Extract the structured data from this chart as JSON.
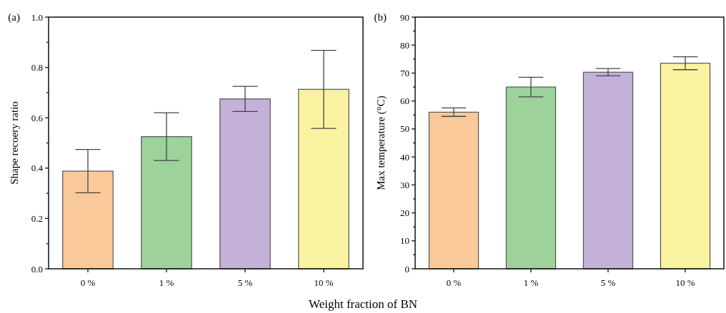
{
  "chart_data": [
    {
      "type": "bar",
      "title": "(a)",
      "xlabel": "Weight fraction of BN",
      "ylabel": "Shape recoery ratio",
      "categories": [
        "0 %",
        "1 %",
        "5 %",
        "10 %"
      ],
      "values": [
        0.388,
        0.525,
        0.675,
        0.713
      ],
      "errors": [
        0.086,
        0.095,
        0.05,
        0.155
      ],
      "colors": [
        "#f9c99a",
        "#9dd29b",
        "#c3b1d7",
        "#f9f3a1"
      ],
      "ylim": [
        0,
        1
      ],
      "yticks": [
        {
          "value": 0,
          "label": "0.0"
        },
        {
          "value": 0.1,
          "label": null
        },
        0.2,
        {
          "value": 0.3,
          "label": null
        },
        0.4,
        {
          "value": 0.5,
          "label": null
        },
        0.6,
        {
          "value": 0.7,
          "label": null
        },
        0.8,
        {
          "value": 0.9,
          "label": null
        },
        {
          "value": 1,
          "label": "1.0"
        }
      ],
      "grid": false
    },
    {
      "type": "bar",
      "title": "(b)",
      "ylabel": "Max temperature (°C)",
      "categories": [
        "0 %",
        "1 %",
        "5 %",
        "10 %"
      ],
      "values": [
        56,
        65,
        70.3,
        73.5
      ],
      "errors": [
        1.5,
        3.5,
        1.3,
        2.3
      ],
      "colors": [
        "#f9c99a",
        "#9dd29b",
        "#c3b1d7",
        "#f9f3a1"
      ],
      "ylim": [
        0,
        90
      ],
      "yticks": [
        0,
        {
          "value": 5,
          "label": null
        },
        10,
        {
          "value": 15,
          "label": null
        },
        20,
        {
          "value": 25,
          "label": null
        },
        30,
        {
          "value": 35,
          "label": null
        },
        40,
        {
          "value": 45,
          "label": null
        },
        50,
        {
          "value": 55,
          "label": null
        },
        60,
        {
          "value": 65,
          "label": null
        },
        70,
        {
          "value": 75,
          "label": null
        },
        80,
        {
          "value": 85,
          "label": null
        },
        90
      ],
      "grid": false
    }
  ]
}
